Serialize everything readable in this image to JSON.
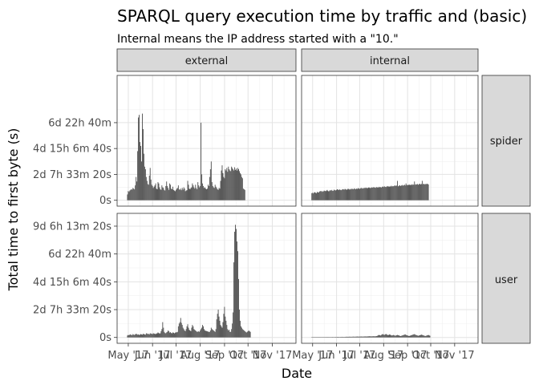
{
  "chart_data": {
    "type": "bar",
    "title": "SPARQL query execution time by traffic and (basic)",
    "subtitle": "Internal means the IP address started with a \"10.\"",
    "xlabel": "Date",
    "ylabel": "Total time to first byte (s)",
    "x_tick_labels": [
      "May '17",
      "Jun '17",
      "Jul '17",
      "Aug '17",
      "Sep '17",
      "Oct '17",
      "Nov '17"
    ],
    "xlim": [
      "2017-04-27",
      "2017-11-21"
    ],
    "column_facets": [
      "external",
      "internal"
    ],
    "row_facets": [
      {
        "label": "spider",
        "ylim": [
          0,
          920000
        ],
        "y_ticks": [
          0,
          200000,
          400000,
          600000
        ],
        "y_tick_labels": [
          "0s",
          "2d 7h 33m 20s",
          "4d 15h 6m 40s",
          "6d 22h 40m"
        ]
      },
      {
        "label": "user",
        "ylim": [
          0,
          850000
        ],
        "y_ticks": [
          0,
          200000,
          400000,
          600000,
          800000
        ],
        "y_tick_labels": [
          "0s",
          "2d 7h 33m 20s",
          "4d 15h 6m 40s",
          "6d 22h 40m",
          "9d 6h 13m 20s"
        ]
      }
    ],
    "grid": true,
    "bar_color": "#4d4d4d",
    "panels": [
      {
        "row": "spider",
        "column": "external",
        "start_date": "2017-04-30",
        "y": [
          45000,
          72000,
          65000,
          75000,
          80000,
          85000,
          82000,
          95000,
          90000,
          84000,
          115000,
          180000,
          145000,
          380000,
          640000,
          660000,
          450000,
          420000,
          300000,
          670000,
          550000,
          360000,
          260000,
          240000,
          180000,
          150000,
          125000,
          120000,
          190000,
          250000,
          160000,
          120000,
          110000,
          95000,
          105000,
          115000,
          130000,
          90000,
          85000,
          140000,
          130000,
          100000,
          85000,
          80000,
          115000,
          100000,
          95000,
          80000,
          75000,
          110000,
          145000,
          110000,
          95000,
          80000,
          130000,
          120000,
          90000,
          85000,
          105000,
          80000,
          75000,
          70000,
          80000,
          90000,
          95000,
          115000,
          85000,
          80000,
          90000,
          78000,
          95000,
          82000,
          100000,
          90000,
          70000,
          75000,
          78000,
          150000,
          120000,
          90000,
          85000,
          95000,
          100000,
          130000,
          115000,
          100000,
          90000,
          120000,
          95000,
          85000,
          140000,
          115000,
          100000,
          110000,
          600000,
          200000,
          130000,
          110000,
          95000,
          100000,
          90000,
          85000,
          90000,
          120000,
          110000,
          180000,
          240000,
          300000,
          140000,
          110000,
          100000,
          95000,
          120000,
          105000,
          95000,
          85000,
          80000,
          95000,
          90000,
          150000,
          230000,
          270000,
          210000,
          180000,
          170000,
          240000,
          230000,
          250000,
          220000,
          260000,
          240000,
          230000,
          225000,
          260000,
          250000,
          240000,
          230000,
          255000,
          235000,
          245000,
          230000,
          250000,
          240000,
          225000,
          210000,
          200000,
          180000,
          170000,
          90000,
          85000,
          80000
        ]
      },
      {
        "row": "spider",
        "column": "internal",
        "start_date": "2017-04-30",
        "y": [
          55000,
          58000,
          52000,
          60000,
          62000,
          58000,
          55000,
          65000,
          60000,
          62000,
          68000,
          70000,
          72000,
          65000,
          70000,
          68000,
          75000,
          72000,
          70000,
          75000,
          80000,
          72000,
          68000,
          74000,
          78000,
          75000,
          80000,
          72000,
          74000,
          82000,
          78000,
          76000,
          80000,
          85000,
          82000,
          79000,
          84000,
          80000,
          78000,
          82000,
          86000,
          84000,
          82000,
          88000,
          85000,
          80000,
          84000,
          90000,
          86000,
          82000,
          88000,
          84000,
          90000,
          87000,
          85000,
          92000,
          88000,
          86000,
          90000,
          88000,
          94000,
          90000,
          88000,
          92000,
          96000,
          90000,
          94000,
          92000,
          96000,
          94000,
          98000,
          95000,
          93000,
          97000,
          100000,
          96000,
          94000,
          98000,
          100000,
          97000,
          102000,
          98000,
          100000,
          96000,
          102000,
          100000,
          98000,
          104000,
          100000,
          102000,
          98000,
          104000,
          106000,
          102000,
          108000,
          104000,
          102000,
          106000,
          110000,
          105000,
          108000,
          104000,
          108000,
          112000,
          106000,
          110000,
          108000,
          112000,
          115000,
          110000,
          114000,
          150000,
          108000,
          112000,
          116000,
          110000,
          114000,
          118000,
          112000,
          116000,
          120000,
          114000,
          130000,
          118000,
          116000,
          120000,
          118000,
          122000,
          116000,
          120000,
          124000,
          118000,
          122000,
          145000,
          120000,
          124000,
          122000,
          126000,
          120000,
          124000,
          128000,
          122000,
          126000,
          150000,
          124000,
          128000,
          122000,
          126000,
          124000,
          128000,
          126000,
          122000
        ]
      },
      {
        "row": "user",
        "column": "external",
        "start_date": "2017-04-30",
        "y": [
          14000,
          18000,
          16000,
          20000,
          22000,
          18000,
          16000,
          24000,
          20000,
          18000,
          22000,
          26000,
          24000,
          20000,
          22000,
          18000,
          20000,
          24000,
          22000,
          20000,
          26000,
          24000,
          22000,
          20000,
          30000,
          28000,
          24000,
          26000,
          22000,
          30000,
          28000,
          26000,
          24000,
          30000,
          28000,
          26000,
          24000,
          28000,
          30000,
          36000,
          32000,
          28000,
          30000,
          45000,
          60000,
          110000,
          70000,
          40000,
          32000,
          30000,
          36000,
          40000,
          50000,
          45000,
          35000,
          38000,
          32000,
          30000,
          36000,
          34000,
          30000,
          34000,
          38000,
          36000,
          40000,
          80000,
          100000,
          110000,
          140000,
          105000,
          90000,
          70000,
          60000,
          50000,
          45000,
          60000,
          80000,
          95000,
          70000,
          55000,
          50000,
          45000,
          70000,
          90000,
          80000,
          60000,
          55000,
          50000,
          45000,
          40000,
          42000,
          44000,
          40000,
          50000,
          60000,
          70000,
          90000,
          80000,
          60000,
          50000,
          48000,
          46000,
          44000,
          42000,
          40000,
          40000,
          50000,
          70000,
          60000,
          55000,
          50000,
          45000,
          40000,
          60000,
          130000,
          170000,
          200000,
          150000,
          120000,
          90000,
          80000,
          70000,
          110000,
          170000,
          220000,
          150000,
          120000,
          90000,
          60000,
          50000,
          55000,
          40000,
          40000,
          60000,
          100000,
          180000,
          540000,
          760000,
          810000,
          780000,
          690000,
          620000,
          420000,
          200000,
          120000,
          80000,
          70000,
          60000,
          55000,
          50000,
          45000,
          40000,
          35000,
          40000,
          45000,
          50000,
          45000,
          40000
        ]
      },
      {
        "row": "user",
        "column": "internal",
        "start_date": "2017-04-30",
        "y": [
          1500,
          2000,
          1800,
          2200,
          1500,
          1200,
          2000,
          1800,
          1500,
          2200,
          2500,
          2000,
          1800,
          1500,
          2000,
          2500,
          2200,
          1800,
          2000,
          2500,
          3000,
          2800,
          2500,
          2200,
          2000,
          2500,
          3000,
          3500,
          3000,
          2800,
          3200,
          3500,
          3000,
          3800,
          4000,
          3500,
          3200,
          3800,
          4000,
          4500,
          4200,
          4000,
          3800,
          4200,
          4500,
          5000,
          4800,
          4500,
          5000,
          5500,
          5000,
          4800,
          5200,
          5500,
          6000,
          5500,
          5200,
          5800,
          6000,
          6500,
          6000,
          5800,
          6200,
          6500,
          7000,
          6500,
          6200,
          6800,
          7000,
          7500,
          7000,
          6800,
          7200,
          7500,
          8000,
          8500,
          8000,
          7500,
          8000,
          8500,
          9000,
          8500,
          8000,
          9000,
          10000,
          12000,
          15000,
          18000,
          16000,
          14000,
          18000,
          22000,
          24000,
          20000,
          18000,
          22000,
          25000,
          22000,
          18000,
          16000,
          20000,
          22000,
          18000,
          15000,
          14000,
          16000,
          18000,
          15000,
          12000,
          14000,
          16000,
          18000,
          16000,
          14000,
          12000,
          10000,
          12000,
          14000,
          16000,
          18000,
          20000,
          22000,
          18000,
          16000,
          14000,
          12000,
          10000,
          12000,
          14000,
          16000,
          18000,
          20000,
          22000,
          24000,
          20000,
          18000,
          16000,
          14000,
          12000,
          14000,
          16000,
          18000,
          20000,
          18000,
          16000,
          14000,
          12000,
          10000,
          12000,
          14000,
          16000,
          18000,
          15000,
          12000
        ]
      }
    ]
  }
}
